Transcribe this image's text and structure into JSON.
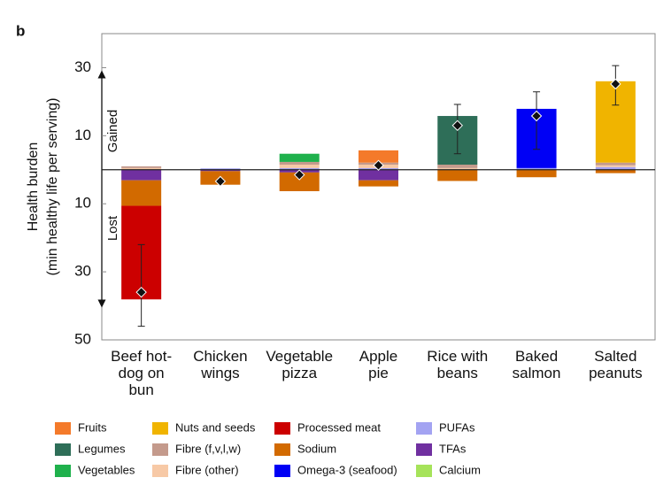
{
  "chart_data": {
    "type": "stacked_bar",
    "panel_label": "b",
    "ylabel": [
      "Health burden",
      "(min healthy life per serving)"
    ],
    "annotations": {
      "gained": "Gained",
      "lost": "Lost"
    },
    "categories": [
      [
        "Beef hot-",
        "dog on",
        "bun"
      ],
      [
        "Chicken",
        "wings"
      ],
      [
        "Vegetable",
        "pizza"
      ],
      [
        "Apple",
        "pie"
      ],
      [
        "Rice with",
        "beans"
      ],
      [
        "Baked",
        "salmon"
      ],
      [
        "Salted",
        "peanuts"
      ]
    ],
    "series": [
      {
        "name": "Fruits",
        "color": "#f47a2a",
        "values": [
          0,
          0,
          0,
          3.6,
          0,
          0,
          0
        ]
      },
      {
        "name": "Legumes",
        "color": "#2e6e58",
        "values": [
          0,
          0,
          0,
          0,
          14.3,
          0,
          0
        ]
      },
      {
        "name": "Vegetables",
        "color": "#1fb14c",
        "values": [
          0,
          0,
          2.4,
          0,
          0,
          0,
          0
        ]
      },
      {
        "name": "Nuts and seeds",
        "color": "#f0b400",
        "values": [
          0,
          0,
          0,
          0,
          0,
          0,
          23.9
        ]
      },
      {
        "name": "Fibre (f,v,l,w)",
        "color": "#c49a8c",
        "values": [
          0.5,
          0,
          0.8,
          0.6,
          1,
          0,
          0.8
        ]
      },
      {
        "name": "Fibre (other)",
        "color": "#f7c9a6",
        "values": [
          0.5,
          0,
          1,
          1,
          0.5,
          0,
          0.5
        ]
      },
      {
        "name": "Processed meat",
        "color": "#cc0000",
        "values": [
          -27.5,
          0,
          0,
          0,
          0,
          0,
          0
        ]
      },
      {
        "name": "Sodium",
        "color": "#d26a00",
        "values": [
          -7.5,
          -4,
          -5.5,
          -1.8,
          -3.3,
          -2.2,
          -1
        ]
      },
      {
        "name": "Omega-3 (seafood)",
        "color": "#0000f5",
        "values": [
          0,
          0,
          0,
          0,
          0,
          17.4,
          0
        ]
      },
      {
        "name": "PUFAs",
        "color": "#a3a3f2",
        "values": [
          0,
          0.4,
          0.5,
          0.5,
          0,
          0.5,
          0.8
        ]
      },
      {
        "name": "TFAs",
        "color": "#7030a0",
        "values": [
          -3.1,
          -0.4,
          -0.8,
          -3.1,
          0,
          0,
          0
        ]
      },
      {
        "name": "Calcium",
        "color": "#a6e35a",
        "values": [
          0,
          0,
          0,
          0,
          0,
          0,
          0
        ]
      }
    ],
    "net": {
      "values": [
        -36,
        -3.4,
        -1.5,
        1.3,
        13,
        15.8,
        25.2
      ],
      "error_low": [
        -46,
        null,
        null,
        null,
        4.7,
        6,
        19
      ],
      "error_high": [
        -22,
        null,
        null,
        null,
        19.2,
        22.9,
        30.6
      ]
    },
    "ylim": [
      -50,
      40
    ],
    "yticks": [
      {
        "value": -50,
        "label": "50"
      },
      {
        "value": -30,
        "label": "30"
      },
      {
        "value": -10,
        "label": "10"
      },
      10,
      30
    ],
    "grid": false
  }
}
